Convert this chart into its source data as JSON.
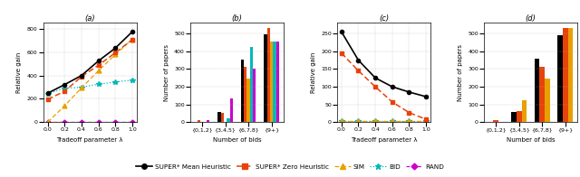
{
  "fig_width": 6.4,
  "fig_height": 1.96,
  "dpi": 100,
  "lambda_vals": [
    0.0,
    0.2,
    0.4,
    0.6,
    0.8,
    1.0
  ],
  "plot_a": {
    "super_mean": [
      248,
      322,
      400,
      525,
      635,
      775
    ],
    "super_zero": [
      195,
      265,
      390,
      488,
      595,
      708
    ],
    "sim": [
      0,
      140,
      295,
      440,
      580,
      710
    ],
    "bid": [
      245,
      290,
      300,
      325,
      345,
      360
    ],
    "rand": [
      0,
      0,
      0,
      0,
      0,
      0
    ],
    "ylabel": "Relative gain",
    "xlabel": "Tradeoff parameter λ",
    "label": "(a)",
    "ylim": [
      0,
      850
    ],
    "yticks": [
      0,
      200,
      400,
      600,
      800
    ]
  },
  "plot_b": {
    "categories": [
      "{0,1,2}",
      "{3,4,5}",
      "{6,7,8}",
      "{9+}"
    ],
    "super_mean": [
      3,
      55,
      355,
      495
    ],
    "super_zero": [
      12,
      50,
      315,
      530
    ],
    "sim": [
      0,
      0,
      245,
      455
    ],
    "bid": [
      0,
      20,
      425,
      455
    ],
    "rand": [
      12,
      135,
      300,
      455
    ],
    "ylabel": "Number of papers",
    "xlabel": "Number of bids",
    "label": "(b)",
    "ylim": [
      0,
      560
    ],
    "yticks": [
      0,
      100,
      200,
      300,
      400,
      500
    ]
  },
  "plot_c": {
    "super_mean": [
      255,
      175,
      125,
      100,
      85,
      72
    ],
    "super_zero": [
      195,
      145,
      100,
      57,
      27,
      8
    ],
    "sim": [
      2,
      2,
      2,
      2,
      2,
      2
    ],
    "bid": [
      2,
      2,
      2,
      2,
      2,
      2
    ],
    "rand": [
      0,
      0,
      0,
      0,
      0,
      0
    ],
    "ylabel": "Relative gain",
    "xlabel": "Tradeoff parameter λ",
    "label": "(c)",
    "ylim": [
      0,
      280
    ],
    "yticks": [
      0,
      50,
      100,
      150,
      200,
      250
    ]
  },
  "plot_d": {
    "categories": [
      "{0,1,2}",
      "{3,4,5}",
      "{6,7,8}",
      "{9+}"
    ],
    "super_mean": [
      3,
      58,
      360,
      490
    ],
    "super_zero": [
      10,
      60,
      315,
      530
    ],
    "sim": [
      0,
      125,
      245,
      530
    ],
    "ylabel": "Number of papers",
    "xlabel": "Number of bids",
    "label": "(d)",
    "ylim": [
      0,
      560
    ],
    "yticks": [
      0,
      100,
      200,
      300,
      400,
      500
    ]
  },
  "colors": {
    "super_mean": "#000000",
    "super_zero": "#e8420a",
    "sim": "#e8a000",
    "bid": "#00b8b8",
    "rand": "#cc00cc"
  },
  "legend": {
    "super_mean_label": "SUPER* Mean Heuristic",
    "super_zero_label": "SUPER* Zero Heuristic",
    "sim_label": "SIM",
    "bid_label": "BID",
    "rand_label": "RAND"
  }
}
